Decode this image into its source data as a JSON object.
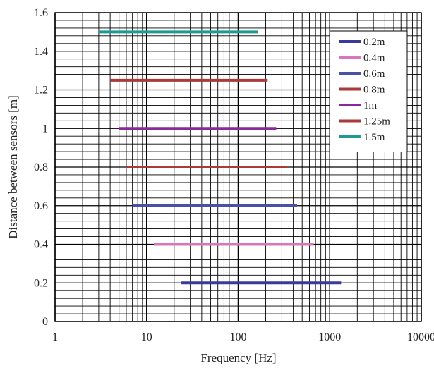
{
  "chart_data": {
    "type": "line",
    "title": "",
    "xlabel": "Frequency [Hz]",
    "ylabel": "Distance between sensors [m]",
    "x_scale": "log",
    "xlim": [
      1,
      10000
    ],
    "ylim": [
      0,
      1.6
    ],
    "x_ticks": [
      {
        "value": 1,
        "label": "1"
      },
      {
        "value": 10,
        "label": "10"
      },
      {
        "value": 100,
        "label": "100"
      },
      {
        "value": 1000,
        "label": "1000"
      },
      {
        "value": 10000,
        "label": "10000"
      }
    ],
    "y_ticks": [
      {
        "value": 0,
        "label": "0"
      },
      {
        "value": 0.2,
        "label": "0.2"
      },
      {
        "value": 0.4,
        "label": "0.4"
      },
      {
        "value": 0.6,
        "label": "0.6"
      },
      {
        "value": 0.8,
        "label": "0.8"
      },
      {
        "value": 1.0,
        "label": "1"
      },
      {
        "value": 1.2,
        "label": "1.2"
      },
      {
        "value": 1.4,
        "label": "1.4"
      },
      {
        "value": 1.6,
        "label": "1.6"
      }
    ],
    "grid": true,
    "legend_position": "top-right",
    "series": [
      {
        "name": "0.2m",
        "color": "#3a3a9a",
        "x": [
          24,
          1330
        ],
        "y": [
          0.2,
          0.2
        ]
      },
      {
        "name": "0.4m",
        "color": "#d977bd",
        "x": [
          12,
          670
        ],
        "y": [
          0.4,
          0.4
        ]
      },
      {
        "name": "0.6m",
        "color": "#4a4fa8",
        "x": [
          7,
          440
        ],
        "y": [
          0.6,
          0.6
        ]
      },
      {
        "name": "0.8m",
        "color": "#a83a3a",
        "x": [
          6,
          340
        ],
        "y": [
          0.8,
          0.8
        ]
      },
      {
        "name": "1m",
        "color": "#8a2a9a",
        "x": [
          5,
          260
        ],
        "y": [
          1.0,
          1.0
        ]
      },
      {
        "name": "1.25m",
        "color": "#a83a3a",
        "x": [
          4,
          210
        ],
        "y": [
          1.25,
          1.25
        ]
      },
      {
        "name": "1.5m",
        "color": "#1e9a92",
        "x": [
          3,
          165
        ],
        "y": [
          1.5,
          1.5
        ]
      }
    ]
  }
}
